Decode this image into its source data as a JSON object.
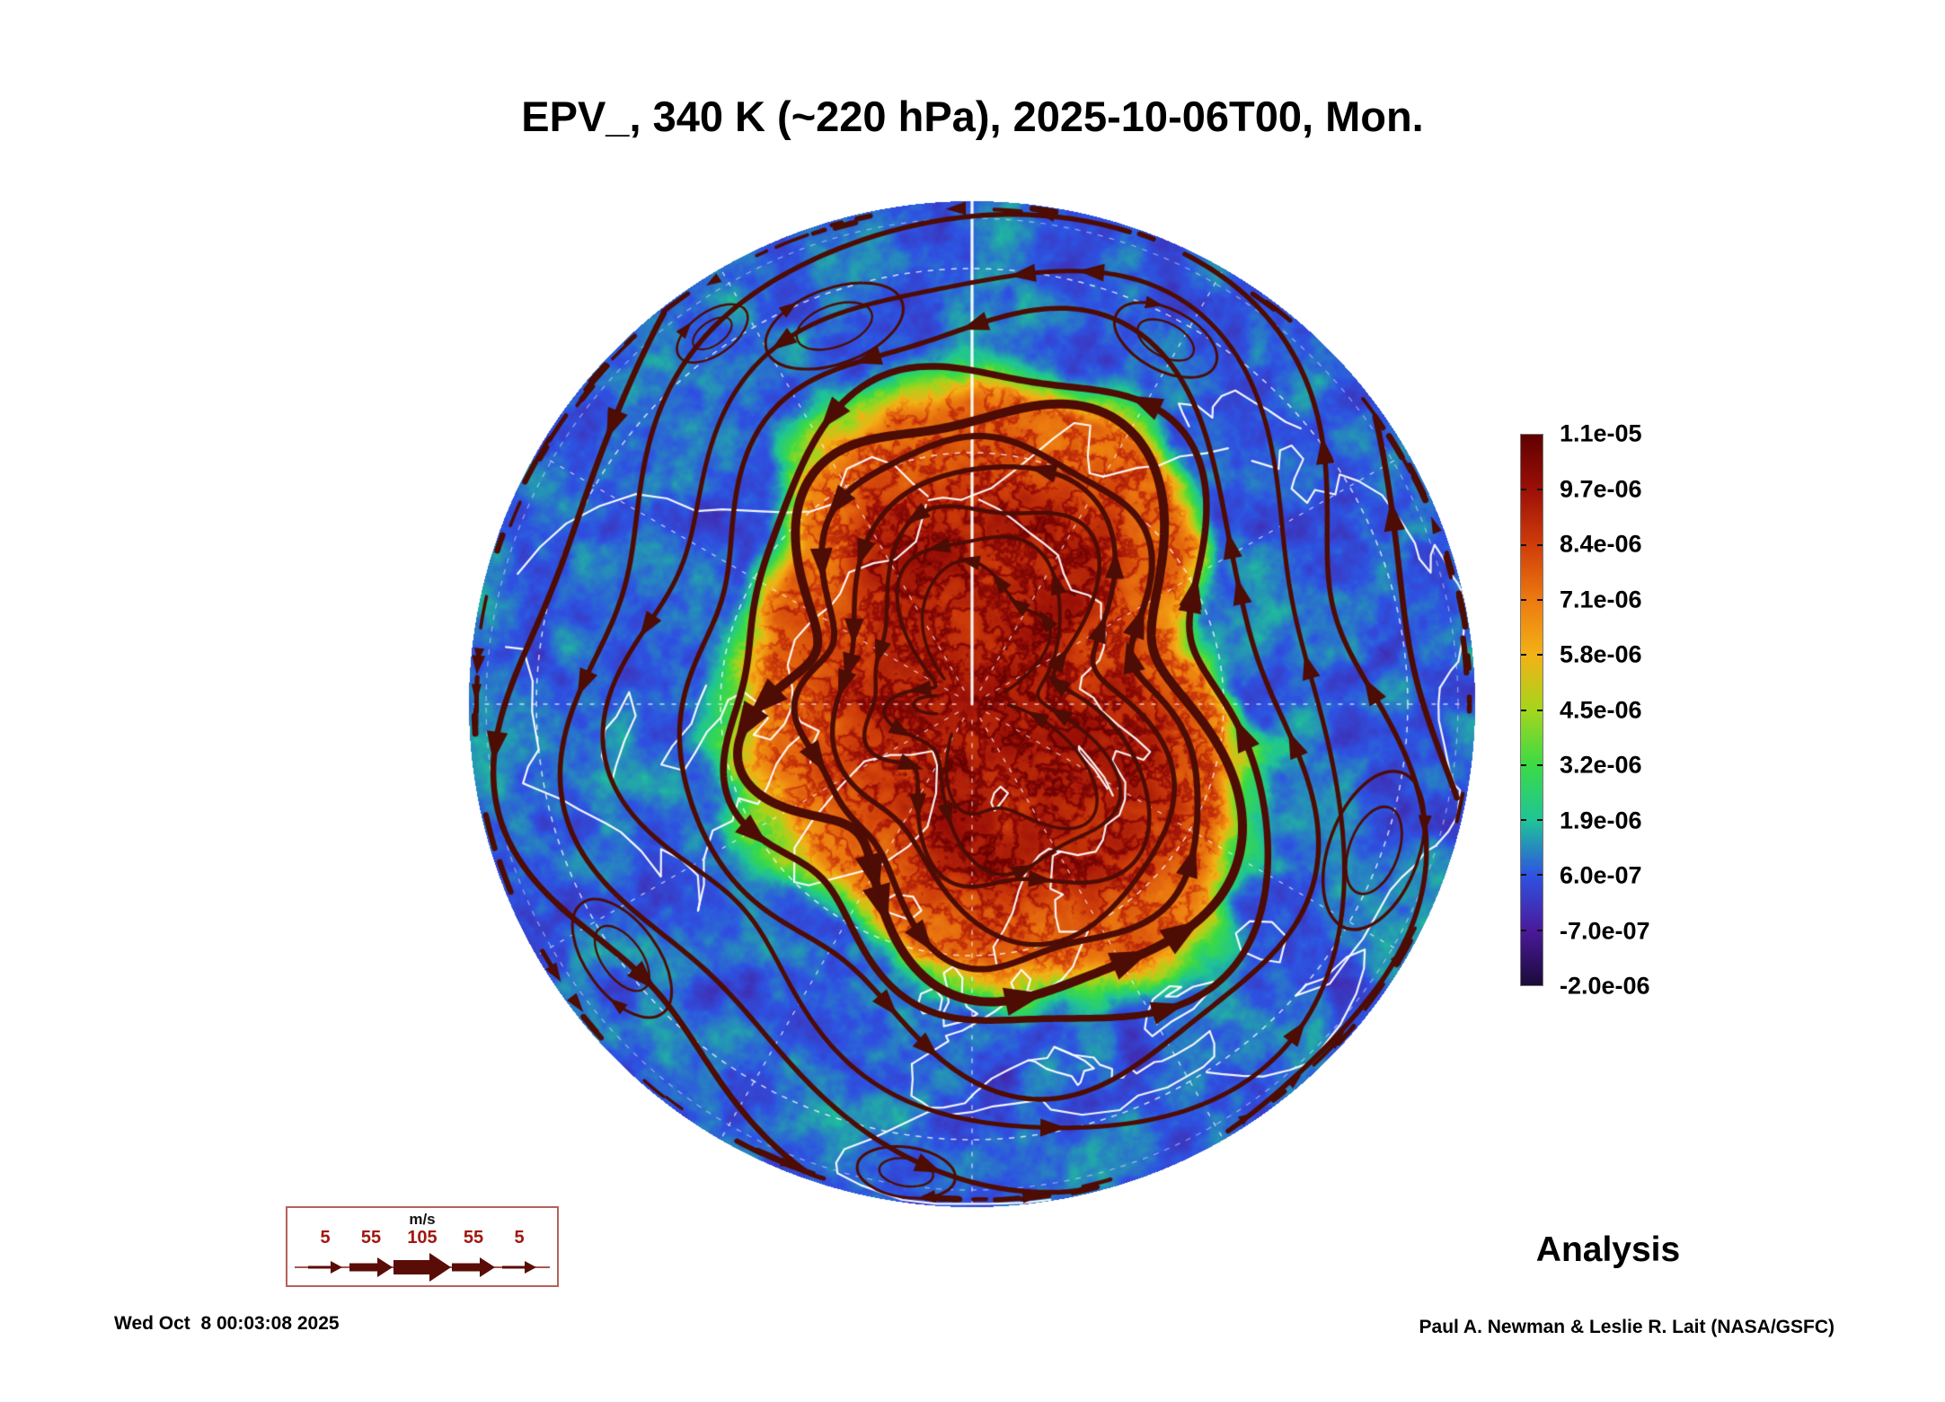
{
  "title": "EPV_, 340 K (~220 hPa), 2025-10-06T00, Mon.",
  "footer": {
    "timestamp": "Wed Oct  8 00:03:08 2025",
    "credit": "Paul A. Newman & Leslie R. Lait (NASA/GSFC)"
  },
  "chart_data": {
    "type": "heatmap",
    "title": "EPV_, 340 K (~220 hPa), 2025-10-06T00, Mon.",
    "variable": "EPV_ (Ertel potential vorticity)",
    "level": "340 K (~220 hPa)",
    "valid_time": "2025-10-06T00",
    "weekday": "Mon.",
    "analysis_label": "Analysis",
    "projection": "Northern Hemisphere polar orthographic view, North Pole at center, equator at rim, 0 deg longitude at bottom",
    "grid": "white dashed latitude circles (30, 60 deg) and meridians every 30 deg; solid white meridian from pole to top rim",
    "overlays": [
      "EPV filled field (rainbow palette)",
      "wind streamlines in dark red, line thickness proportional to wind speed",
      "white coastlines"
    ],
    "colorbar": {
      "orientation": "vertical, right side",
      "min": -2e-06,
      "max": 1.1e-05,
      "tick_labels": [
        "1.1e-05",
        "9.7e-06",
        "8.4e-06",
        "7.1e-06",
        "5.8e-06",
        "4.5e-06",
        "3.2e-06",
        "1.9e-06",
        "6.0e-07",
        "-7.0e-07",
        "-2.0e-06"
      ],
      "stops": [
        {
          "value": -2e-06,
          "color": "#1b0a38"
        },
        {
          "value": -7e-07,
          "color": "#4a1a9b"
        },
        {
          "value": 6e-07,
          "color": "#2e53e2"
        },
        {
          "value": 1.9e-06,
          "color": "#1fc497"
        },
        {
          "value": 3.2e-06,
          "color": "#3bdb46"
        },
        {
          "value": 4.5e-06,
          "color": "#a4d51c"
        },
        {
          "value": 5.8e-06,
          "color": "#f3b216"
        },
        {
          "value": 7.1e-06,
          "color": "#ec7a10"
        },
        {
          "value": 8.4e-06,
          "color": "#cf3d0a"
        },
        {
          "value": 9.7e-06,
          "color": "#9c1007"
        },
        {
          "value": 1.1e-05,
          "color": "#5f0000"
        }
      ]
    },
    "wind_legend": {
      "units": "m/s",
      "speeds": [
        "5",
        "55",
        "105",
        "55",
        "5"
      ],
      "arrow_color": "#5a0c06",
      "label_color": "#a01810"
    },
    "field_summary": "High EPV (orange/red, about 6e-06 to 1.1e-05) fills the distorted polar-vortex region over the Arctic, ringed by a green transition band; low EPV (blue, about 0 to 2e-06) with violet negative patches covers the subtropical rim; dark-red streamlines circle the vortex counterclockwise."
  }
}
